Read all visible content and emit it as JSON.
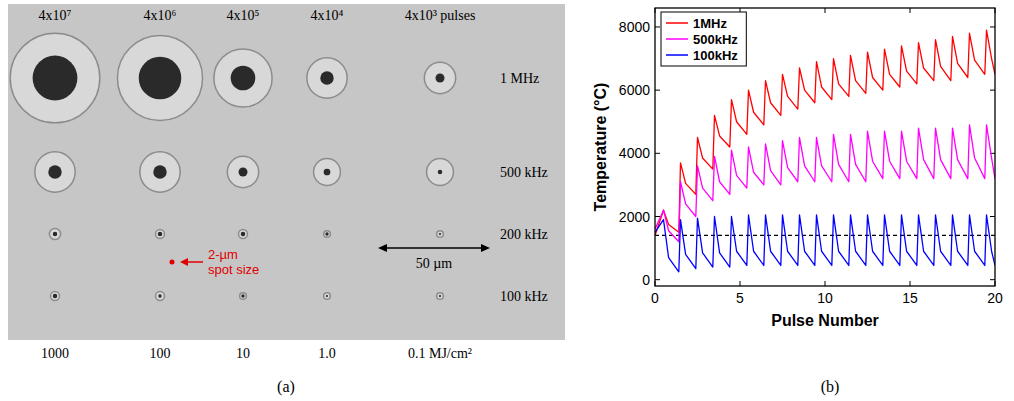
{
  "chart_data": [
    {
      "type": "image",
      "panel": "(a)",
      "columns": [
        "4x10⁷",
        "4x10⁶",
        "4x10⁵",
        "4x10⁴",
        "4x10³ pulses"
      ],
      "rows": [
        {
          "label": "1 MHz",
          "ring_diameters": [
            40,
            38,
            26,
            18,
            14
          ],
          "crater_diameters": [
            20,
            19,
            11,
            6,
            4
          ]
        },
        {
          "label": "500 kHz",
          "ring_diameters": [
            18,
            18,
            14,
            12,
            12
          ],
          "crater_diameters": [
            6,
            6,
            4,
            3,
            2
          ]
        },
        {
          "label": "200 kHz",
          "ring_diameters": [
            5,
            4,
            4,
            3,
            3
          ],
          "crater_diameters": [
            2,
            2,
            2,
            1.5,
            1
          ]
        },
        {
          "label": "100 kHz",
          "ring_diameters": [
            4,
            4,
            3,
            3,
            3
          ],
          "crater_diameters": [
            2,
            1.5,
            1.5,
            1,
            1
          ]
        }
      ],
      "fluences": [
        "1000",
        "100",
        "10",
        "1.0",
        "0.1 MJ/cm²"
      ],
      "annotation": "2-µm spot size",
      "scale_bar": {
        "value": 50,
        "label": "50 µm"
      }
    },
    {
      "type": "line",
      "panel": "(b)",
      "x_label": "Pulse Number",
      "y_label": "Temperature (°C)",
      "xlim": [
        0,
        20
      ],
      "xticks": [
        0,
        5,
        10,
        15,
        20
      ],
      "ylim": [
        -200,
        8600
      ],
      "yticks": [
        0,
        2000,
        4000,
        6000,
        8000
      ],
      "legend": "top-left",
      "hlines": [
        1400
      ],
      "x": [
        0,
        0.5,
        0.8,
        1.4,
        1.5,
        1.8,
        2.4,
        2.5,
        2.8,
        3.4,
        3.5,
        3.8,
        4.4,
        4.5,
        4.8,
        5.4,
        5.5,
        5.8,
        6.4,
        6.5,
        6.8,
        7.4,
        7.5,
        7.8,
        8.4,
        8.5,
        8.8,
        9.4,
        9.5,
        9.8,
        10.4,
        10.5,
        10.8,
        11.4,
        11.5,
        11.8,
        12.4,
        12.5,
        12.8,
        13.4,
        13.5,
        13.8,
        14.4,
        14.5,
        14.8,
        15.4,
        15.5,
        15.8,
        16.4,
        16.5,
        16.8,
        17.4,
        17.5,
        17.8,
        18.4,
        18.5,
        18.8,
        19.4,
        19.5,
        19.8,
        20
      ],
      "series": [
        {
          "name": "1MHz",
          "color": "#ff0000",
          "values": [
            1400,
            2200,
            1750,
            1500,
            3700,
            3050,
            2700,
            4500,
            3850,
            3500,
            5200,
            4550,
            4200,
            5700,
            5000,
            4600,
            6000,
            5300,
            4900,
            6300,
            5600,
            5200,
            6500,
            5800,
            5400,
            6700,
            6000,
            5600,
            6900,
            6100,
            5700,
            7000,
            6200,
            5800,
            7100,
            6300,
            5900,
            7200,
            6400,
            6000,
            7300,
            6500,
            6100,
            7400,
            6600,
            6200,
            7500,
            6700,
            6300,
            7600,
            6750,
            6300,
            7700,
            6850,
            6400,
            7800,
            6950,
            6500,
            7900,
            7000,
            6500
          ]
        },
        {
          "name": "500kHz",
          "color": "#ff00ff",
          "values": [
            1600,
            2200,
            1550,
            1200,
            3100,
            2400,
            2000,
            3600,
            2900,
            2500,
            3900,
            3100,
            2700,
            4100,
            3300,
            2900,
            4200,
            3400,
            3000,
            4300,
            3450,
            3000,
            4400,
            3550,
            3100,
            4500,
            3600,
            3100,
            4500,
            3600,
            3100,
            4600,
            3650,
            3100,
            4600,
            3650,
            3100,
            4700,
            3750,
            3200,
            4700,
            3750,
            3200,
            4700,
            3750,
            3200,
            4800,
            3800,
            3200,
            4800,
            3800,
            3200,
            4800,
            3800,
            3200,
            4900,
            3850,
            3200,
            4900,
            3850,
            3200
          ]
        },
        {
          "name": "100kHz",
          "color": "#0000ff",
          "values": [
            1500,
            1900,
            700,
            250,
            1900,
            800,
            350,
            1950,
            850,
            400,
            2000,
            850,
            400,
            2000,
            900,
            450,
            2050,
            900,
            450,
            2050,
            900,
            450,
            2050,
            900,
            450,
            2050,
            900,
            450,
            2050,
            900,
            450,
            2050,
            900,
            450,
            2050,
            900,
            450,
            2050,
            900,
            450,
            2050,
            900,
            450,
            2050,
            900,
            450,
            2050,
            900,
            450,
            2050,
            900,
            450,
            2050,
            900,
            450,
            2050,
            900,
            450,
            2050,
            900,
            450
          ]
        }
      ]
    }
  ]
}
